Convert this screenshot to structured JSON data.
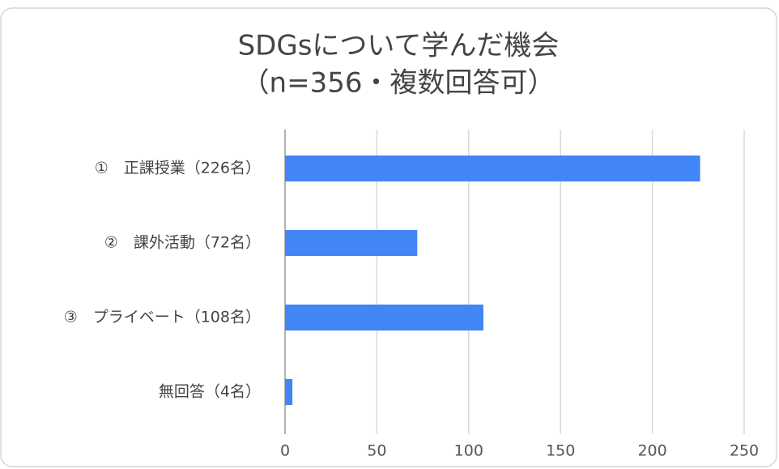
{
  "chart_data": {
    "type": "bar",
    "orientation": "horizontal",
    "title": "SDGsについて学んだ機会",
    "subtitle": "（n=356・複数回答可）",
    "categories": [
      "①　正課授業（226名）",
      "②　課外活動（72名）",
      "③　プライベート（108名）",
      "無回答（4名）"
    ],
    "values": [
      226,
      72,
      108,
      4
    ],
    "color": "#4285f4",
    "xlim": [
      0,
      250
    ],
    "xticks": [
      0,
      50,
      100,
      150,
      200,
      250
    ],
    "grid": true
  }
}
